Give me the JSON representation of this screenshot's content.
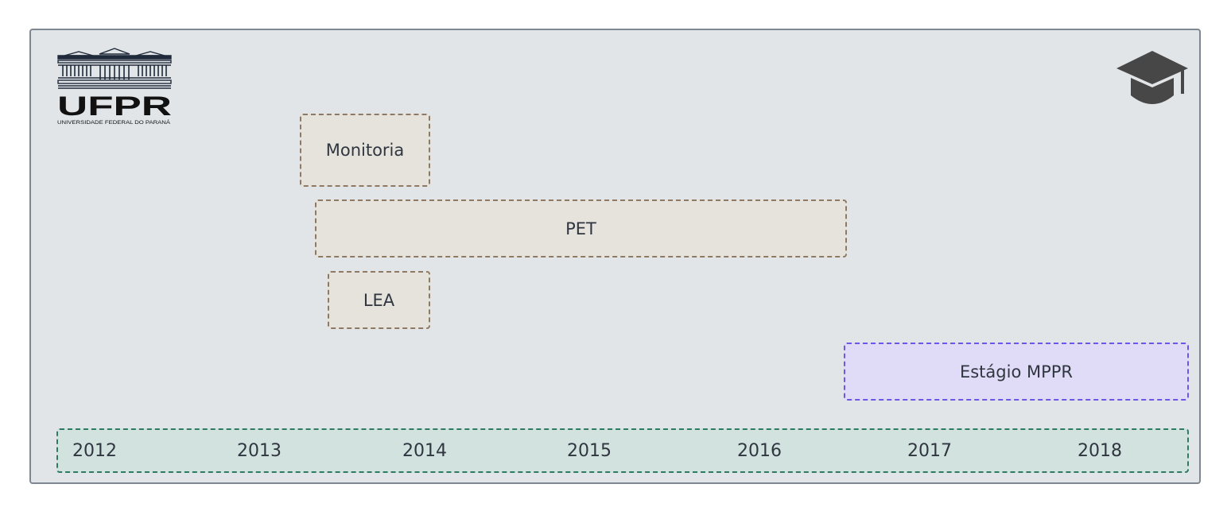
{
  "logo": {
    "wordmark": "UFPR",
    "subtitle": "UNIVERSIDADE FEDERAL DO PARANÁ"
  },
  "icons": {
    "top_right": "graduation-cap-icon"
  },
  "activities": [
    {
      "label": "Monitoria"
    },
    {
      "label": "PET"
    },
    {
      "label": "LEA"
    }
  ],
  "internship": {
    "label": "Estágio MPPR"
  },
  "timeline": {
    "years": [
      "2012",
      "2013",
      "2014",
      "2015",
      "2016",
      "2017",
      "2018"
    ]
  },
  "colors": {
    "panel": "#e2e5e8",
    "activity_fill": "#e6e3dd",
    "activity_border": "#8e7a64",
    "internship_fill": "#e0dcf8",
    "internship_border": "#6b58e6",
    "timeline_fill": "#d2e2de",
    "timeline_border": "#2f7a63"
  }
}
